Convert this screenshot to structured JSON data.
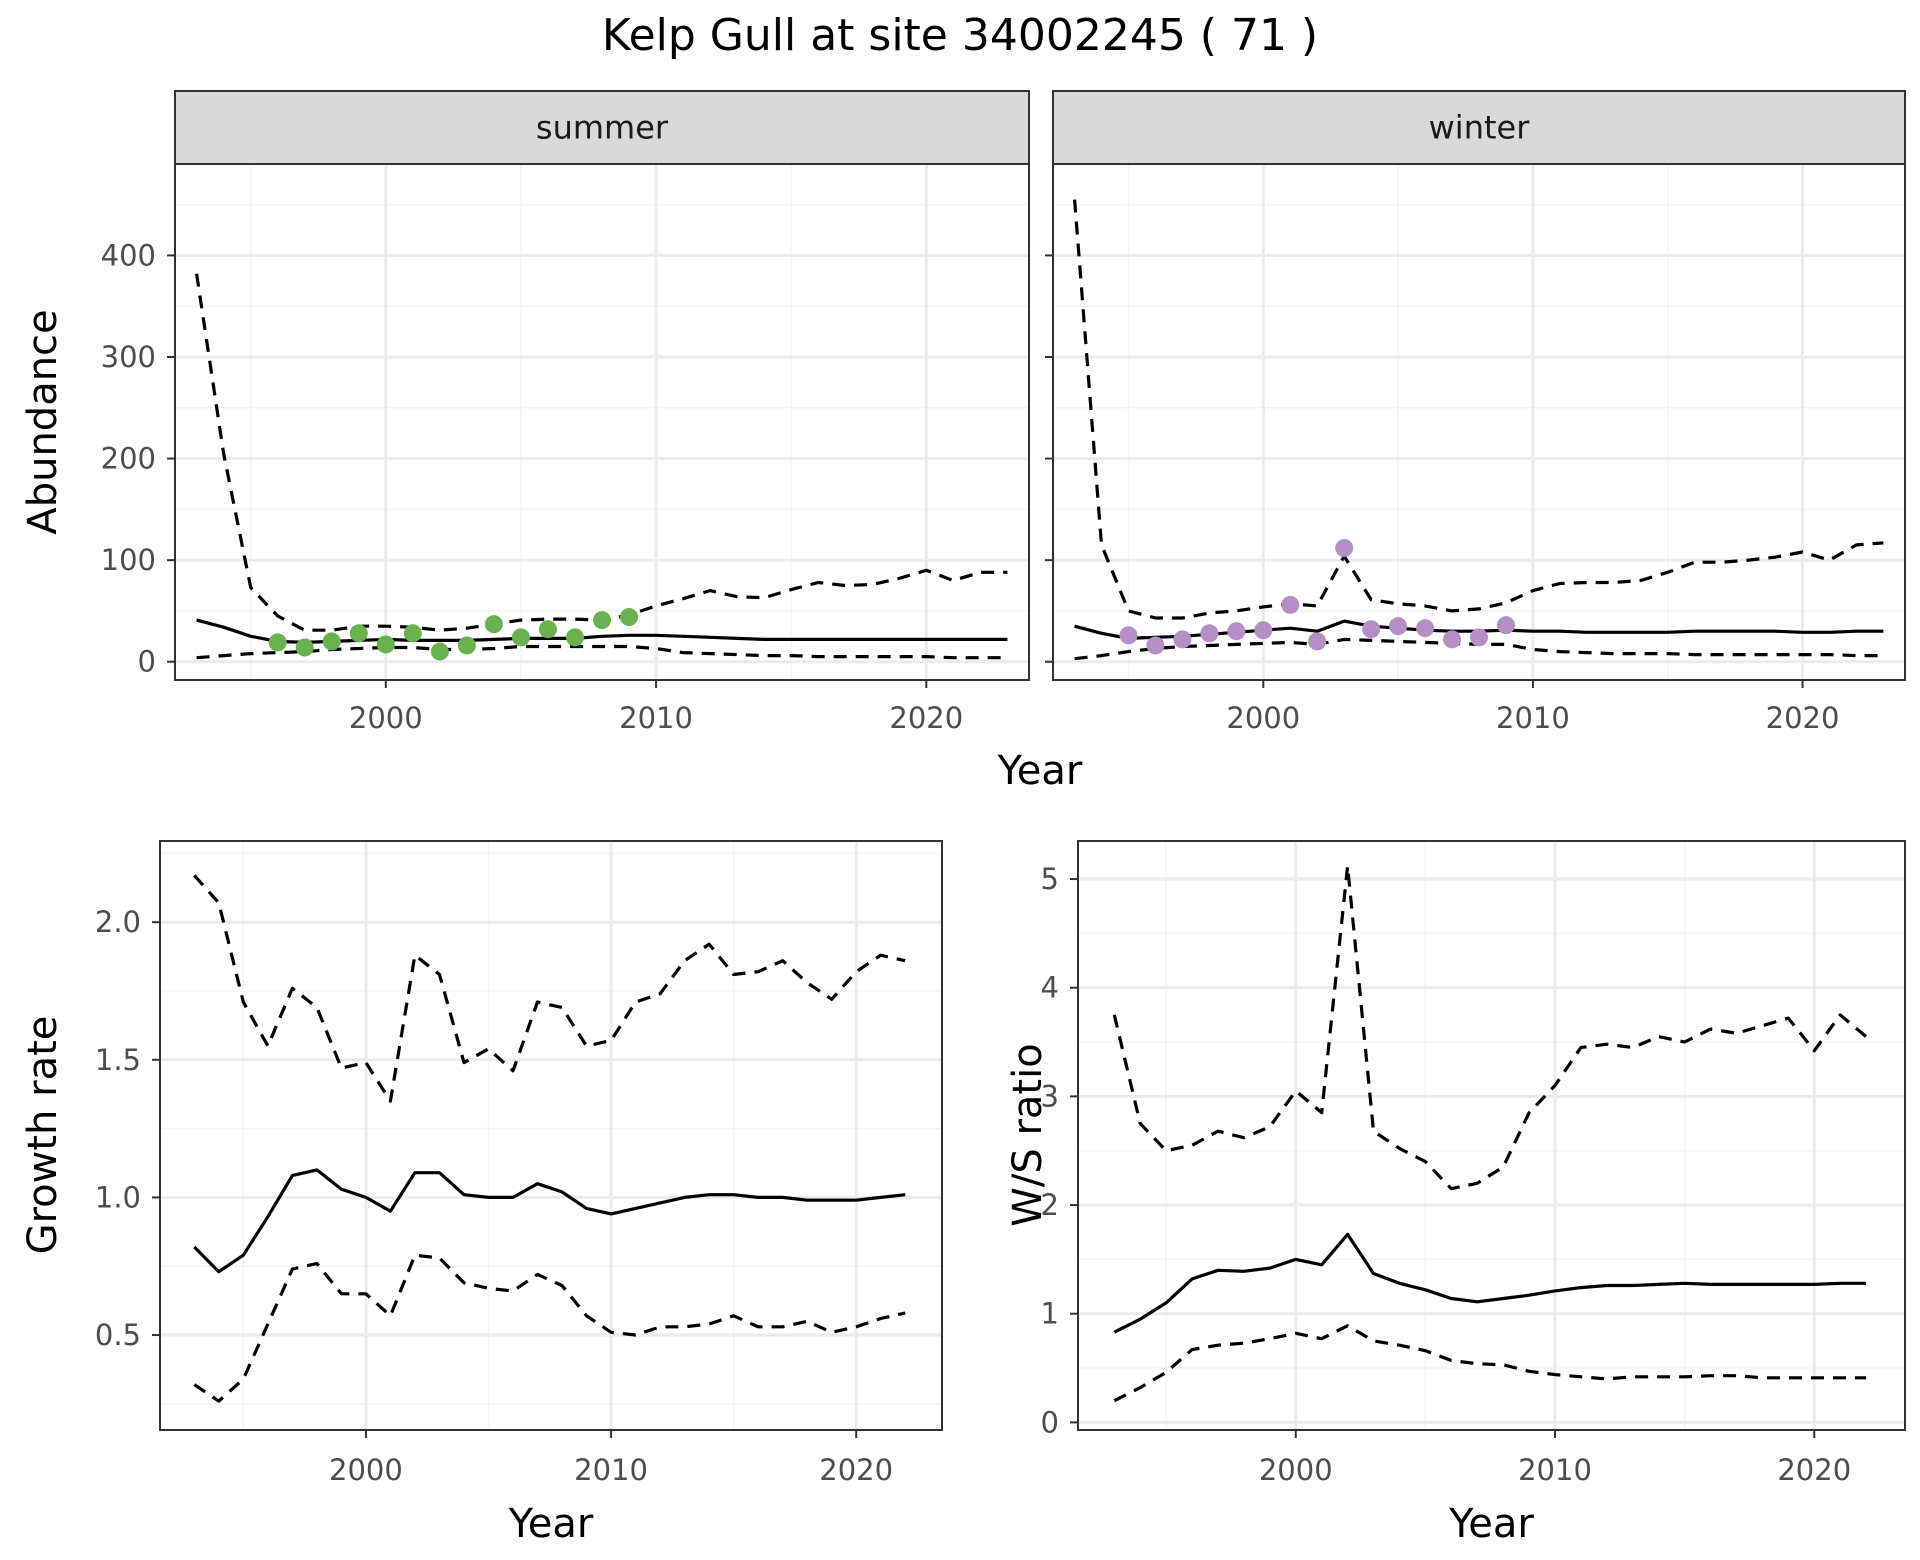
{
  "figure": {
    "title": "Kelp Gull at site 34002245 ( 71 )"
  },
  "chart_data": [
    {
      "id": "summer",
      "type": "line",
      "facet_label": "summer",
      "xlabel": "",
      "ylabel": "Abundance",
      "xlim": [
        1992.2,
        2023.8
      ],
      "ylim": [
        -18,
        490
      ],
      "xticks": [
        2000,
        2010,
        2020
      ],
      "yticks": [
        0,
        100,
        200,
        300,
        400
      ],
      "show_ytick_labels": true,
      "grid": true,
      "point_color": "#6ab150",
      "series": [
        {
          "role": "upper",
          "style": "dashed",
          "x": [
            1993,
            1994,
            1995,
            1996,
            1997,
            1998,
            1999,
            2000,
            2001,
            2002,
            2003,
            2004,
            2005,
            2006,
            2007,
            2008,
            2009,
            2010,
            2011,
            2012,
            2013,
            2014,
            2015,
            2016,
            2017,
            2018,
            2019,
            2020,
            2021,
            2022,
            2023
          ],
          "y": [
            382,
            205,
            73,
            45,
            31,
            31,
            35,
            35,
            34,
            31,
            33,
            37,
            41,
            42,
            42,
            41,
            46,
            55,
            62,
            70,
            64,
            63,
            71,
            78,
            75,
            76,
            82,
            90,
            80,
            88,
            88
          ]
        },
        {
          "role": "mean",
          "style": "solid",
          "x": [
            1993,
            1994,
            1995,
            1996,
            1997,
            1998,
            1999,
            2000,
            2001,
            2002,
            2003,
            2004,
            2005,
            2006,
            2007,
            2008,
            2009,
            2010,
            2011,
            2012,
            2013,
            2014,
            2015,
            2016,
            2017,
            2018,
            2019,
            2020,
            2021,
            2022,
            2023
          ],
          "y": [
            41,
            34,
            25,
            20,
            19,
            20,
            21,
            22,
            21,
            21,
            21,
            22,
            23,
            23,
            23,
            25,
            26,
            26,
            25,
            24,
            23,
            22,
            22,
            22,
            22,
            22,
            22,
            22,
            22,
            22,
            22
          ]
        },
        {
          "role": "lower",
          "style": "dashed",
          "x": [
            1993,
            1994,
            1995,
            1996,
            1997,
            1998,
            1999,
            2000,
            2001,
            2002,
            2003,
            2004,
            2005,
            2006,
            2007,
            2008,
            2009,
            2010,
            2011,
            2012,
            2013,
            2014,
            2015,
            2016,
            2017,
            2018,
            2019,
            2020,
            2021,
            2022,
            2023
          ],
          "y": [
            4,
            6,
            8,
            9,
            10,
            12,
            13,
            14,
            14,
            12,
            12,
            13,
            15,
            15,
            15,
            15,
            15,
            13,
            9,
            8,
            7,
            6,
            6,
            5,
            5,
            5,
            5,
            5,
            4,
            4,
            4
          ]
        }
      ],
      "points": {
        "x": [
          1996,
          1997,
          1998,
          1999,
          2000,
          2001,
          2002,
          2003,
          2004,
          2005,
          2006,
          2007,
          2008,
          2009
        ],
        "y": [
          19,
          14,
          20,
          28,
          17,
          28,
          10,
          16,
          37,
          24,
          32,
          24,
          41,
          44
        ]
      }
    },
    {
      "id": "winter",
      "type": "line",
      "facet_label": "winter",
      "xlabel": "",
      "ylabel": "",
      "xlim": [
        1992.2,
        2023.8
      ],
      "ylim": [
        -18,
        490
      ],
      "xticks": [
        2000,
        2010,
        2020
      ],
      "yticks": [
        0,
        100,
        200,
        300,
        400
      ],
      "show_ytick_labels": false,
      "grid": true,
      "point_color": "#b48ec5",
      "series": [
        {
          "role": "upper",
          "style": "dashed",
          "x": [
            1993,
            1994,
            1995,
            1996,
            1997,
            1998,
            1999,
            2000,
            2001,
            2002,
            2003,
            2004,
            2005,
            2006,
            2007,
            2008,
            2009,
            2010,
            2011,
            2012,
            2013,
            2014,
            2015,
            2016,
            2017,
            2018,
            2019,
            2020,
            2021,
            2022,
            2023
          ],
          "y": [
            455,
            115,
            50,
            43,
            43,
            48,
            50,
            54,
            57,
            55,
            104,
            61,
            57,
            55,
            50,
            52,
            58,
            70,
            77,
            78,
            78,
            80,
            88,
            98,
            98,
            100,
            103,
            108,
            100,
            115,
            117
          ]
        },
        {
          "role": "mean",
          "style": "solid",
          "x": [
            1993,
            1994,
            1995,
            1996,
            1997,
            1998,
            1999,
            2000,
            2001,
            2002,
            2003,
            2004,
            2005,
            2006,
            2007,
            2008,
            2009,
            2010,
            2011,
            2012,
            2013,
            2014,
            2015,
            2016,
            2017,
            2018,
            2019,
            2020,
            2021,
            2022,
            2023
          ],
          "y": [
            35,
            28,
            23,
            24,
            25,
            27,
            29,
            31,
            33,
            30,
            40,
            35,
            33,
            31,
            30,
            30,
            31,
            30,
            30,
            29,
            29,
            29,
            29,
            30,
            30,
            30,
            30,
            29,
            29,
            30,
            30
          ]
        },
        {
          "role": "lower",
          "style": "dashed",
          "x": [
            1993,
            1994,
            1995,
            1996,
            1997,
            1998,
            1999,
            2000,
            2001,
            2002,
            2003,
            2004,
            2005,
            2006,
            2007,
            2008,
            2009,
            2010,
            2011,
            2012,
            2013,
            2014,
            2015,
            2016,
            2017,
            2018,
            2019,
            2020,
            2021,
            2022,
            2023
          ],
          "y": [
            3,
            6,
            10,
            13,
            15,
            16,
            17,
            18,
            19,
            17,
            22,
            21,
            20,
            19,
            18,
            17,
            17,
            12,
            10,
            9,
            8,
            8,
            8,
            7,
            7,
            7,
            7,
            7,
            7,
            6,
            6
          ]
        }
      ],
      "points": {
        "x": [
          1995,
          1996,
          1997,
          1998,
          1999,
          2000,
          2001,
          2002,
          2003,
          2004,
          2005,
          2006,
          2007,
          2008,
          2009
        ],
        "y": [
          26,
          16,
          22,
          28,
          30,
          31,
          56,
          20,
          112,
          32,
          35,
          33,
          22,
          24,
          36
        ]
      }
    },
    {
      "id": "growth",
      "type": "line",
      "xlabel": "Year",
      "ylabel": "Growth rate",
      "xlim": [
        1991.6,
        2023.5
      ],
      "ylim": [
        0.155,
        2.295
      ],
      "xticks": [
        2000,
        2010,
        2020
      ],
      "yticks": [
        0.5,
        1.0,
        1.5,
        2.0
      ],
      "ytick_labels": [
        "0.5",
        "1.0",
        "1.5",
        "2.0"
      ],
      "show_ytick_labels": true,
      "grid": true,
      "series": [
        {
          "role": "upper",
          "style": "dashed",
          "x": [
            1993,
            1994,
            1995,
            1996,
            1997,
            1998,
            1999,
            2000,
            2001,
            2002,
            2003,
            2004,
            2005,
            2006,
            2007,
            2008,
            2009,
            2010,
            2011,
            2012,
            2013,
            2014,
            2015,
            2016,
            2017,
            2018,
            2019,
            2020,
            2021,
            2022
          ],
          "y": [
            2.17,
            2.07,
            1.71,
            1.55,
            1.76,
            1.69,
            1.47,
            1.49,
            1.35,
            1.88,
            1.81,
            1.49,
            1.54,
            1.46,
            1.71,
            1.69,
            1.55,
            1.57,
            1.71,
            1.74,
            1.86,
            1.92,
            1.81,
            1.82,
            1.86,
            1.78,
            1.72,
            1.82,
            1.88,
            1.86
          ]
        },
        {
          "role": "mean",
          "style": "solid",
          "x": [
            1993,
            1994,
            1995,
            1996,
            1997,
            1998,
            1999,
            2000,
            2001,
            2002,
            2003,
            2004,
            2005,
            2006,
            2007,
            2008,
            2009,
            2010,
            2011,
            2012,
            2013,
            2014,
            2015,
            2016,
            2017,
            2018,
            2019,
            2020,
            2021,
            2022
          ],
          "y": [
            0.82,
            0.73,
            0.79,
            0.93,
            1.08,
            1.1,
            1.03,
            1.0,
            0.95,
            1.09,
            1.09,
            1.01,
            1.0,
            1.0,
            1.05,
            1.02,
            0.96,
            0.94,
            0.96,
            0.98,
            1.0,
            1.01,
            1.01,
            1.0,
            1.0,
            0.99,
            0.99,
            0.99,
            1.0,
            1.01
          ]
        },
        {
          "role": "lower",
          "style": "dashed",
          "x": [
            1993,
            1994,
            1995,
            1996,
            1997,
            1998,
            1999,
            2000,
            2001,
            2002,
            2003,
            2004,
            2005,
            2006,
            2007,
            2008,
            2009,
            2010,
            2011,
            2012,
            2013,
            2014,
            2015,
            2016,
            2017,
            2018,
            2019,
            2020,
            2021,
            2022
          ],
          "y": [
            0.32,
            0.26,
            0.34,
            0.54,
            0.74,
            0.76,
            0.65,
            0.65,
            0.57,
            0.79,
            0.78,
            0.69,
            0.67,
            0.66,
            0.72,
            0.68,
            0.57,
            0.51,
            0.5,
            0.53,
            0.53,
            0.54,
            0.57,
            0.53,
            0.53,
            0.55,
            0.51,
            0.53,
            0.56,
            0.58
          ]
        }
      ]
    },
    {
      "id": "ws_ratio",
      "type": "line",
      "xlabel": "Year",
      "ylabel": "W/S ratio",
      "xlim": [
        1991.6,
        2023.5
      ],
      "ylim": [
        -0.07,
        5.35
      ],
      "xticks": [
        2000,
        2010,
        2020
      ],
      "yticks": [
        0,
        1,
        2,
        3,
        4,
        5
      ],
      "show_ytick_labels": true,
      "grid": true,
      "series": [
        {
          "role": "upper",
          "style": "dashed",
          "x": [
            1993,
            1994,
            1995,
            1996,
            1997,
            1998,
            1999,
            2000,
            2001,
            2002,
            2003,
            2004,
            2005,
            2006,
            2007,
            2008,
            2009,
            2010,
            2011,
            2012,
            2013,
            2014,
            2015,
            2016,
            2017,
            2018,
            2019,
            2020,
            2021,
            2022
          ],
          "y": [
            3.75,
            2.75,
            2.5,
            2.55,
            2.68,
            2.62,
            2.72,
            3.05,
            2.85,
            5.12,
            2.68,
            2.52,
            2.4,
            2.15,
            2.2,
            2.35,
            2.85,
            3.1,
            3.45,
            3.48,
            3.45,
            3.55,
            3.5,
            3.62,
            3.58,
            3.65,
            3.72,
            3.42,
            3.75,
            3.55
          ]
        },
        {
          "role": "mean",
          "style": "solid",
          "x": [
            1993,
            1994,
            1995,
            1996,
            1997,
            1998,
            1999,
            2000,
            2001,
            2002,
            2003,
            2004,
            2005,
            2006,
            2007,
            2008,
            2009,
            2010,
            2011,
            2012,
            2013,
            2014,
            2015,
            2016,
            2017,
            2018,
            2019,
            2020,
            2021,
            2022
          ],
          "y": [
            0.83,
            0.95,
            1.1,
            1.32,
            1.4,
            1.39,
            1.42,
            1.5,
            1.45,
            1.73,
            1.37,
            1.28,
            1.22,
            1.14,
            1.11,
            1.14,
            1.17,
            1.21,
            1.24,
            1.26,
            1.26,
            1.27,
            1.28,
            1.27,
            1.27,
            1.27,
            1.27,
            1.27,
            1.28,
            1.28
          ]
        },
        {
          "role": "lower",
          "style": "dashed",
          "x": [
            1993,
            1994,
            1995,
            1996,
            1997,
            1998,
            1999,
            2000,
            2001,
            2002,
            2003,
            2004,
            2005,
            2006,
            2007,
            2008,
            2009,
            2010,
            2011,
            2012,
            2013,
            2014,
            2015,
            2016,
            2017,
            2018,
            2019,
            2020,
            2021,
            2022
          ],
          "y": [
            0.2,
            0.32,
            0.46,
            0.67,
            0.71,
            0.73,
            0.77,
            0.82,
            0.77,
            0.89,
            0.75,
            0.71,
            0.66,
            0.57,
            0.54,
            0.53,
            0.47,
            0.44,
            0.42,
            0.4,
            0.42,
            0.42,
            0.42,
            0.43,
            0.43,
            0.41,
            0.41,
            0.41,
            0.41,
            0.41
          ]
        }
      ]
    }
  ],
  "shared_labels": {
    "top_row_xlabel": "Year"
  },
  "style": {
    "strip_fill": "#d9d9d9",
    "grid_major": "#ebebeb",
    "grid_minor": "#f5f5f5",
    "panel_border": "#333333",
    "line_color": "#000000"
  }
}
